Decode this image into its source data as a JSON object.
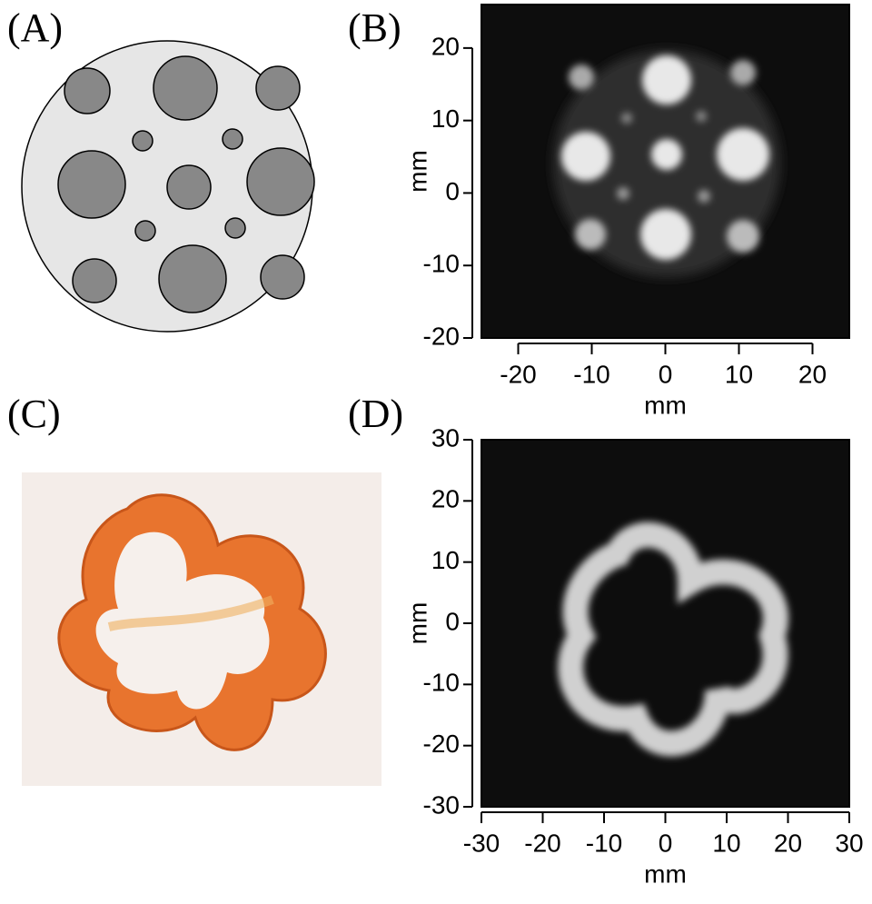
{
  "panels": [
    {
      "label": "(A)"
    },
    {
      "label": "(B)",
      "xlabel": "mm",
      "ylabel": "mm",
      "xlim": [
        -25,
        25
      ],
      "ylim": [
        -20,
        26
      ],
      "xticks": [
        -20,
        -10,
        0,
        10,
        20
      ],
      "yticks": [
        -20,
        -10,
        0,
        10,
        20
      ]
    },
    {
      "label": "(C)"
    },
    {
      "label": "(D)",
      "xlabel": "mm",
      "ylabel": "mm",
      "xlim": [
        -30,
        30
      ],
      "ylim": [
        -30,
        30
      ],
      "xticks": [
        -30,
        -20,
        -10,
        0,
        10,
        20,
        30
      ],
      "yticks": [
        -30,
        -20,
        -10,
        0,
        10,
        20,
        30
      ]
    }
  ]
}
